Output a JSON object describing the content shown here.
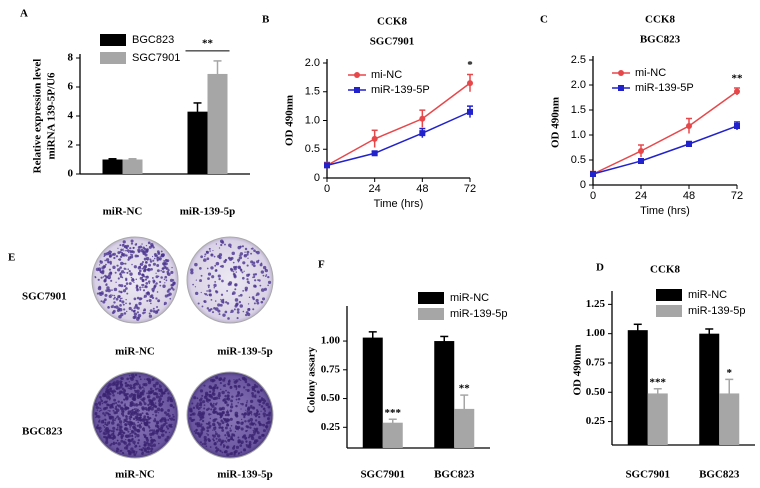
{
  "chart_data": [
    {
      "type": "bar",
      "panel_label": "A",
      "ylabel": [
        "Relative expression level",
        "miRNA 139-5P/U6"
      ],
      "categories": [
        "miR-NC",
        "miR-139-5p"
      ],
      "series": [
        {
          "name": "BGC823",
          "color": "#000000",
          "values": [
            1.0,
            4.3
          ],
          "errors": [
            0.05,
            0.6
          ]
        },
        {
          "name": "SGC7901",
          "color": "#a6a6a6",
          "values": [
            1.0,
            6.9
          ],
          "errors": [
            0.05,
            0.9
          ]
        }
      ],
      "ylim": [
        0,
        8
      ],
      "yticks": [
        0,
        2,
        4,
        6,
        8
      ],
      "annotations": [
        "**"
      ]
    },
    {
      "type": "line",
      "panel_label": "B",
      "title": "CCK8",
      "subtitle": "SGC7901",
      "xlabel": "Time (hrs)",
      "ylabel": "OD 490nm",
      "x": [
        0,
        24,
        48,
        72
      ],
      "xlim": [
        0,
        72
      ],
      "xticks": [
        0,
        24,
        48,
        72
      ],
      "series": [
        {
          "name": "mi-NC",
          "color": "#e8474a",
          "values": [
            0.22,
            0.68,
            1.03,
            1.65
          ],
          "errors": [
            0.05,
            0.15,
            0.15,
            0.15
          ]
        },
        {
          "name": "miR-139-5P",
          "color": "#2222cc",
          "values": [
            0.22,
            0.43,
            0.78,
            1.15
          ],
          "errors": [
            0.03,
            0.03,
            0.08,
            0.1
          ]
        }
      ],
      "ylim": [
        0,
        2.0
      ],
      "yticks": [
        0,
        0.5,
        {
          "value": 1.0,
          "label": "1.0"
        },
        1.5,
        {
          "value": 2.0,
          "label": "2.0"
        }
      ],
      "annotations": [
        "*"
      ]
    },
    {
      "type": "line",
      "panel_label": "C",
      "title": "CCK8",
      "subtitle": "BGC823",
      "xlabel": "Time (hrs)",
      "ylabel": "OD 490nm",
      "x": [
        0,
        24,
        48,
        72
      ],
      "xlim": [
        0,
        72
      ],
      "xticks": [
        0,
        24,
        48,
        72
      ],
      "series": [
        {
          "name": "mi-NC",
          "color": "#e8474a",
          "values": [
            0.22,
            0.68,
            1.18,
            1.87
          ],
          "errors": [
            0.05,
            0.12,
            0.15,
            0.07
          ]
        },
        {
          "name": "miR-139-5P",
          "color": "#2222cc",
          "values": [
            0.22,
            0.48,
            0.82,
            1.18
          ],
          "errors": [
            0.03,
            0.04,
            0.05,
            0.08
          ]
        }
      ],
      "ylim": [
        0,
        2.5
      ],
      "yticks": [
        0,
        0.5,
        {
          "value": 1.0,
          "label": "1.0"
        },
        1.5,
        {
          "value": 2.0,
          "label": "2.0"
        },
        2.5
      ],
      "annotations": [
        "**"
      ]
    },
    {
      "type": "bar",
      "panel_label": "F",
      "ylabel": "Colony assary",
      "categories": [
        "SGC7901",
        "BGC823"
      ],
      "series": [
        {
          "name": "miR-NC",
          "color": "#000000",
          "values": [
            1.03,
            1.0
          ],
          "errors": [
            0.05,
            0.04
          ]
        },
        {
          "name": "miR-139-5p",
          "color": "#a6a6a6",
          "values": [
            0.29,
            0.41
          ],
          "errors": [
            0.03,
            0.12
          ]
        }
      ],
      "ylim": [
        0.07,
        1.27
      ],
      "yticks": [
        0.25,
        {
          "value": 0.5,
          "label": "0.50"
        },
        0.75,
        {
          "value": 1.0,
          "label": "1.00"
        }
      ],
      "annotations": [
        "***",
        "**"
      ]
    },
    {
      "type": "bar",
      "panel_label": "D",
      "title": "CCK8",
      "ylabel": "OD 490nm",
      "categories": [
        "SGC7901",
        "BGC823"
      ],
      "series": [
        {
          "name": "miR-NC",
          "color": "#000000",
          "values": [
            1.03,
            1.0
          ],
          "errors": [
            0.05,
            0.04
          ]
        },
        {
          "name": "miR-139-5p",
          "color": "#a6a6a6",
          "values": [
            0.49,
            0.49
          ],
          "errors": [
            0.04,
            0.12
          ]
        }
      ],
      "ylim": [
        0.05,
        1.33
      ],
      "yticks": [
        0.25,
        {
          "value": 0.5,
          "label": "0.50"
        },
        0.75,
        {
          "value": 1.0,
          "label": "1.00"
        },
        1.25
      ],
      "annotations": [
        "***",
        "*"
      ]
    }
  ],
  "panel_e": {
    "panel_label": "E",
    "rows": [
      {
        "name": "SGC7901",
        "columns": [
          "miR-NC",
          "miR-139-5p"
        ]
      },
      {
        "name": "BGC823",
        "columns": [
          "miR-NC",
          "miR-139-5p"
        ]
      }
    ]
  }
}
